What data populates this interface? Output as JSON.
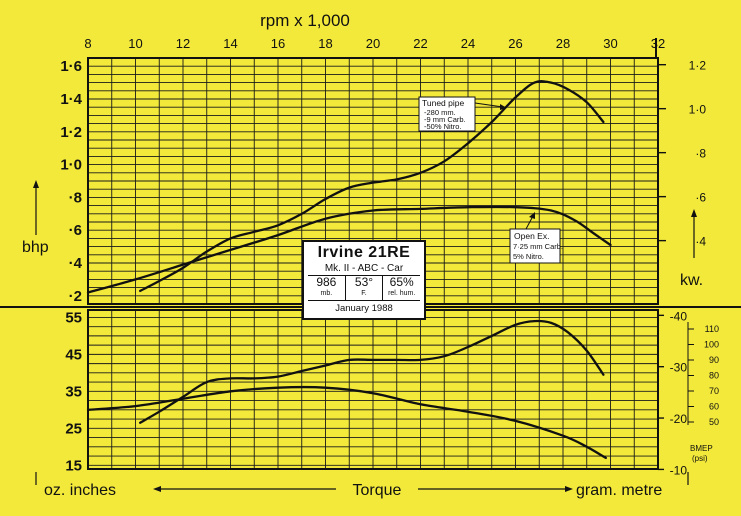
{
  "chart_data": [
    {
      "type": "line",
      "panel": "power",
      "top_axis_label": "rpm  x  1,000",
      "x_ticks": [
        "8",
        "10",
        "12",
        "14",
        "16",
        "18",
        "20",
        "22",
        "24",
        "26",
        "28",
        "30",
        "32"
      ],
      "xlim": [
        8,
        32
      ],
      "ylabel": "bhp",
      "ylim": [
        0.15,
        1.65
      ],
      "y_ticks": [
        "·2",
        "·4",
        "·6",
        "·8",
        "1·0",
        "1·2",
        "1·4",
        "1·6"
      ],
      "y2label": "kw.",
      "y2_ticks": [
        "·4",
        "·6",
        "·8",
        "1·0",
        "1·2"
      ],
      "grid": true,
      "series": [
        {
          "name": "Tuned pipe",
          "x": [
            10.2,
            11,
            12,
            13,
            14,
            15,
            16,
            17,
            18,
            19,
            20,
            21,
            22,
            23,
            24,
            25,
            26,
            26.8,
            27.5,
            28.2,
            29,
            29.7
          ],
          "y": [
            0.23,
            0.29,
            0.37,
            0.47,
            0.55,
            0.59,
            0.63,
            0.7,
            0.79,
            0.86,
            0.89,
            0.91,
            0.95,
            1.02,
            1.13,
            1.26,
            1.41,
            1.5,
            1.5,
            1.46,
            1.38,
            1.26
          ]
        },
        {
          "name": "Open Ex.",
          "x": [
            8,
            10,
            12,
            14,
            16,
            18,
            20,
            22,
            24,
            26,
            27.5,
            28.5,
            29.3,
            30
          ],
          "y": [
            0.22,
            0.3,
            0.39,
            0.48,
            0.57,
            0.67,
            0.72,
            0.73,
            0.74,
            0.74,
            0.72,
            0.66,
            0.58,
            0.51
          ]
        }
      ]
    },
    {
      "type": "line",
      "panel": "torque",
      "xlim": [
        8,
        32
      ],
      "ylabel": "oz. inches",
      "xlabel": "Torque",
      "y2label": "gram. metre",
      "ylim": [
        14,
        57
      ],
      "y_ticks": [
        "15",
        "25",
        "35",
        "45",
        "55"
      ],
      "y2_ticks": [
        "-10",
        "-20",
        "-30",
        "-40"
      ],
      "bmep_label": "BMEP",
      "bmep_unit": "(psi)",
      "bmep_ticks": [
        "50",
        "60",
        "70",
        "80",
        "90",
        "100",
        "110"
      ],
      "grid": true,
      "series": [
        {
          "name": "Tuned pipe",
          "x": [
            10.2,
            11,
            12,
            13,
            14,
            15,
            16,
            17,
            18,
            19,
            20,
            21,
            22,
            23,
            24,
            25,
            26,
            26.8,
            27.5,
            28.2,
            29,
            29.7
          ],
          "y": [
            26.5,
            29.5,
            33.5,
            37.5,
            38.5,
            38.5,
            39,
            40.5,
            42,
            43.5,
            43.5,
            43.5,
            43.5,
            44.5,
            47,
            50,
            53,
            54,
            53.5,
            51,
            46,
            39.5
          ]
        },
        {
          "name": "Open Ex.",
          "x": [
            8,
            10,
            12,
            14,
            16,
            18,
            20,
            22,
            24,
            26,
            28,
            29,
            29.8
          ],
          "y": [
            30,
            31,
            33,
            35,
            36,
            36,
            34.5,
            31.5,
            29.5,
            27,
            23,
            20,
            17
          ]
        }
      ]
    }
  ],
  "annotations": {
    "tuned": {
      "title": "Tuned pipe",
      "lines": [
        "-280 mm.",
        "-9 mm Carb.",
        "-50% Nitro."
      ]
    },
    "open": {
      "title": "Open Ex.",
      "lines": [
        "7·25 mm Carb.",
        "5% Nitro."
      ]
    }
  },
  "info": {
    "title": "Irvine  21RE",
    "subtitle": "Mk. II - ABC - Car",
    "cells": [
      {
        "value": "986",
        "unit": "mb."
      },
      {
        "value": "53°",
        "unit": "F."
      },
      {
        "value": "65%",
        "unit": "rel. hum."
      }
    ],
    "date": "January   1988"
  }
}
